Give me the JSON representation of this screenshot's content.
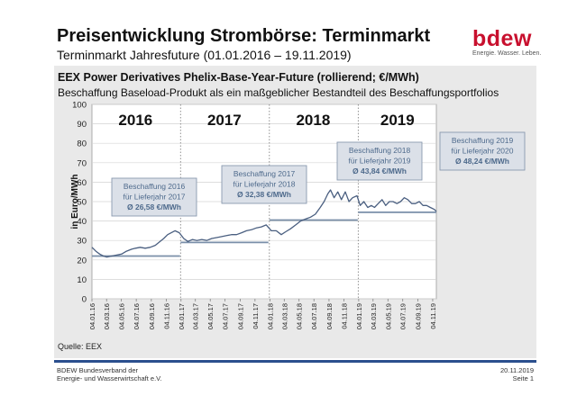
{
  "header": {
    "title": "Preisentwicklung Strombörse: Terminmarkt",
    "subtitle": "Terminmarkt Jahresfuture (01.01.2016 – 19.11.2019)"
  },
  "logo": {
    "wordmark": "bdew",
    "tagline": "Energie. Wasser. Leben.",
    "color": "#c8102e"
  },
  "panel": {
    "title": "EEX Power Derivatives Phelix-Base-Year-Future (rollierend; €/MWh)",
    "subtitle": "Beschaffung Baseload-Produkt als ein maßgeblicher Bestandteil des Beschaffungsportfolios",
    "source": "Quelle: EEX"
  },
  "footer": {
    "org_line1": "BDEW Bundesverband der",
    "org_line2": "Energie- und Wasserwirtschaft e.V.",
    "date": "20.11.2019",
    "page": "Seite 1",
    "accent": "#2b4f8e"
  },
  "chart_data": {
    "type": "line",
    "title": "EEX Power Derivatives Phelix-Base-Year-Future (rollierend; €/MWh)",
    "ylabel": "in Euro/MWh",
    "ylim": [
      0,
      100
    ],
    "yticks": [
      0,
      10,
      20,
      30,
      40,
      50,
      60,
      70,
      80,
      90,
      100
    ],
    "xlim": [
      "2016-01-04",
      "2019-11-19"
    ],
    "xticks": [
      "04.01.16",
      "04.03.16",
      "04.05.16",
      "04.07.16",
      "04.09.16",
      "04.11.16",
      "04.01.17",
      "04.03.17",
      "04.05.17",
      "04.07.17",
      "04.09.17",
      "04.11.17",
      "04.01.18",
      "04.03.18",
      "04.05.18",
      "04.07.18",
      "04.09.18",
      "04.11.18",
      "04.01.19",
      "04.03.19",
      "04.05.19",
      "04.07.19",
      "04.09.19",
      "04.11.19"
    ],
    "grid": "horizontal",
    "line_color": "#4a5f80",
    "year_labels": [
      "2016",
      "2017",
      "2018",
      "2019"
    ],
    "series": [
      {
        "x": [
          "2016-01-04",
          "2016-01-20",
          "2016-02-05",
          "2016-02-20",
          "2016-03-05",
          "2016-03-25",
          "2016-04-15",
          "2016-05-05",
          "2016-05-25",
          "2016-06-15",
          "2016-07-01",
          "2016-07-20",
          "2016-08-10",
          "2016-08-30",
          "2016-09-20",
          "2016-10-10",
          "2016-10-25",
          "2016-11-10",
          "2016-11-25",
          "2016-12-10",
          "2016-12-28",
          "2017-01-15",
          "2017-02-01",
          "2017-02-20",
          "2017-03-10",
          "2017-03-30",
          "2017-04-20",
          "2017-05-10",
          "2017-05-30",
          "2017-06-20",
          "2017-07-10",
          "2017-07-30",
          "2017-08-20",
          "2017-09-10",
          "2017-09-30",
          "2017-10-20",
          "2017-11-10",
          "2017-11-30",
          "2017-12-20",
          "2018-01-10",
          "2018-01-30",
          "2018-02-20",
          "2018-03-10",
          "2018-03-30",
          "2018-04-20",
          "2018-05-10",
          "2018-05-30",
          "2018-06-20",
          "2018-07-10",
          "2018-07-30",
          "2018-08-15",
          "2018-08-30",
          "2018-09-10",
          "2018-09-25",
          "2018-10-10",
          "2018-10-25",
          "2018-11-10",
          "2018-11-25",
          "2018-12-10",
          "2018-12-28",
          "2019-01-10",
          "2019-01-25",
          "2019-02-10",
          "2019-02-25",
          "2019-03-10",
          "2019-03-25",
          "2019-04-10",
          "2019-04-25",
          "2019-05-10",
          "2019-05-25",
          "2019-06-10",
          "2019-06-25",
          "2019-07-10",
          "2019-07-25",
          "2019-08-10",
          "2019-08-25",
          "2019-09-10",
          "2019-09-25",
          "2019-10-10",
          "2019-10-25",
          "2019-11-10",
          "2019-11-19"
        ],
        "y": [
          26.5,
          24.5,
          23,
          22,
          21.5,
          22,
          22.5,
          23,
          24.5,
          25.5,
          26,
          26.5,
          26,
          26.5,
          27.5,
          29.5,
          31,
          33,
          34,
          35,
          34,
          31,
          29.5,
          30.5,
          30,
          30.5,
          30,
          31,
          31.5,
          32,
          32.5,
          33,
          33,
          34,
          35,
          35.5,
          36.5,
          37,
          38,
          35,
          35,
          33,
          34.5,
          36,
          38,
          40,
          41,
          42,
          43.5,
          47,
          50,
          54,
          56,
          52,
          55,
          51,
          55,
          50,
          52,
          53,
          48,
          50,
          47,
          48,
          47,
          49,
          51,
          48,
          50,
          50,
          49,
          50,
          52,
          51,
          49,
          49,
          50,
          48,
          48,
          47,
          46,
          45
        ]
      }
    ],
    "annotations": [
      {
        "lines": [
          "Beschaffung 2016",
          "für Lieferjahr 2017",
          "Ø 26,58 €/MWh"
        ],
        "avg_line": {
          "from": "2016-01-04",
          "to": "2016-12-31",
          "value": 22
        }
      },
      {
        "lines": [
          "Beschaffung 2017",
          "für Lieferjahr 2018",
          "Ø 32,38 €/MWh"
        ],
        "avg_line": {
          "from": "2017-01-02",
          "to": "2017-12-29",
          "value": 29
        }
      },
      {
        "lines": [
          "Beschaffung 2018",
          "für Lieferjahr 2019",
          "Ø 43,84 €/MWh"
        ],
        "avg_line": {
          "from": "2018-01-02",
          "to": "2018-12-31",
          "value": 40.5
        }
      },
      {
        "lines": [
          "Beschaffung 2019",
          "für Lieferjahr 2020",
          "Ø 48,24 €/MWh"
        ],
        "avg_line": {
          "from": "2019-01-02",
          "to": "2019-11-19",
          "value": 44.5
        }
      }
    ]
  }
}
